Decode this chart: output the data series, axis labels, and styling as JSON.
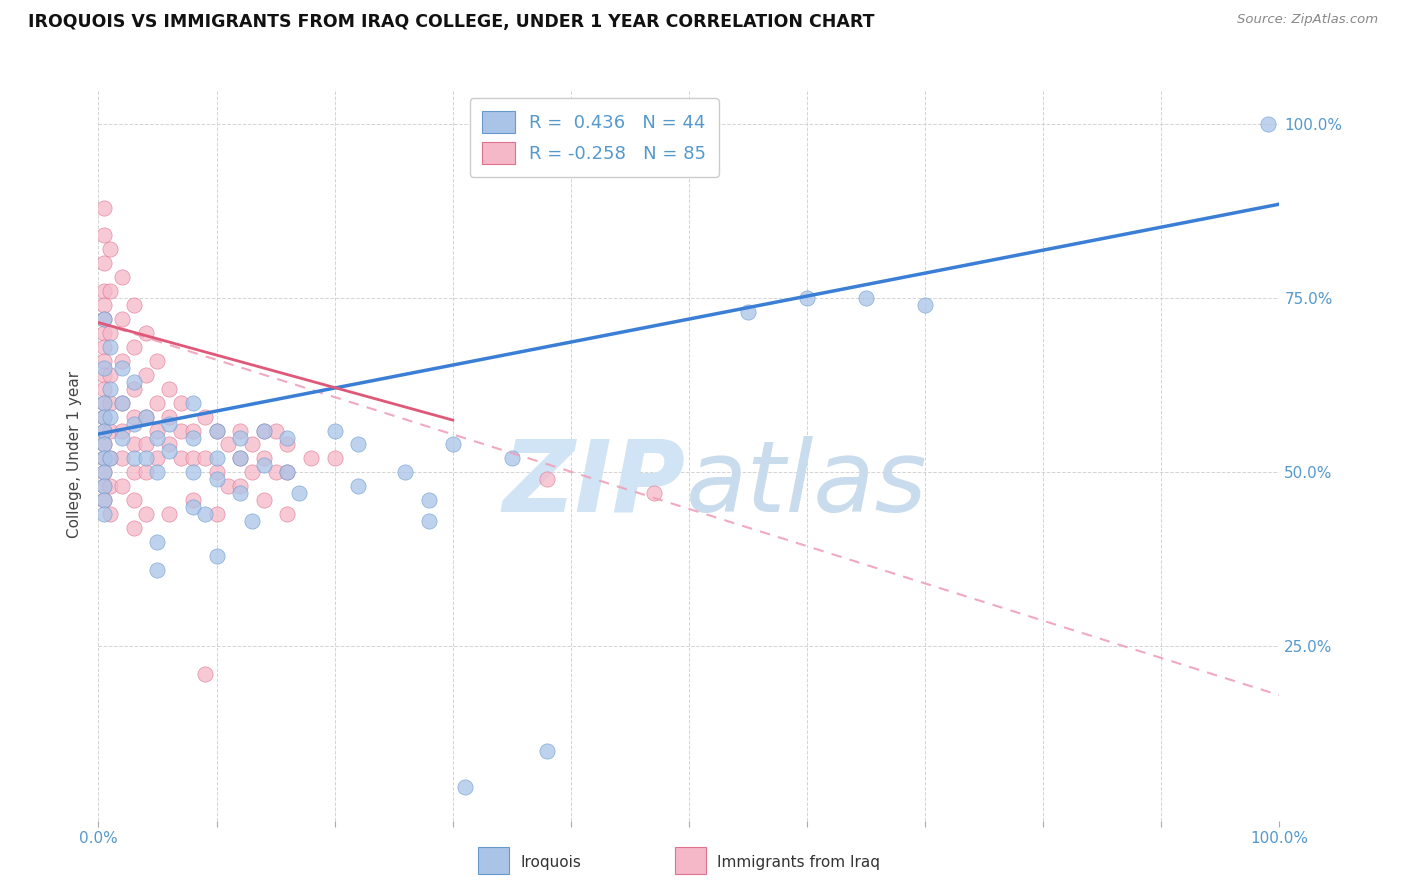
{
  "title": "IROQUOIS VS IMMIGRANTS FROM IRAQ COLLEGE, UNDER 1 YEAR CORRELATION CHART",
  "source": "Source: ZipAtlas.com",
  "ylabel": "College, Under 1 year",
  "iroquois_label": "Iroquois",
  "iraq_label": "Immigrants from Iraq",
  "blue_scatter_color": "#aac4e8",
  "blue_edge_color": "#6699cc",
  "pink_scatter_color": "#f5b8c8",
  "pink_edge_color": "#e07090",
  "blue_line_color": "#3a7fd5",
  "pink_line_solid_color": "#e05878",
  "pink_line_dash_color": "#f0a0b8",
  "grid_color": "#d0d0d0",
  "title_color": "#111111",
  "source_color": "#888888",
  "axis_label_color": "#5599cc",
  "watermark_zip_color": "#d0e4f5",
  "watermark_atlas_color": "#c8dced",
  "xlim": [
    0.0,
    1.0
  ],
  "ylim": [
    0.0,
    1.05
  ],
  "ytick_positions": [
    0.25,
    0.5,
    0.75,
    1.0
  ],
  "ytick_labels_right": [
    "25.0%",
    "50.0%",
    "75.0%",
    "100.0%"
  ],
  "xtick_positions": [
    0.0,
    0.5,
    1.0
  ],
  "iroquois_line_x0": 0.0,
  "iroquois_line_y0": 0.555,
  "iroquois_line_x1": 1.0,
  "iroquois_line_y1": 0.885,
  "iraq_solid_line_x0": 0.0,
  "iraq_solid_line_y0": 0.715,
  "iraq_solid_line_x1": 0.3,
  "iraq_solid_line_y1": 0.575,
  "iraq_dash_line_x0": 0.0,
  "iraq_dash_line_y0": 0.715,
  "iraq_dash_line_x1": 1.0,
  "iraq_dash_line_y1": 0.18,
  "iroquois_scatter": [
    [
      0.005,
      0.72
    ],
    [
      0.005,
      0.65
    ],
    [
      0.005,
      0.6
    ],
    [
      0.005,
      0.58
    ],
    [
      0.005,
      0.56
    ],
    [
      0.005,
      0.54
    ],
    [
      0.005,
      0.52
    ],
    [
      0.005,
      0.5
    ],
    [
      0.005,
      0.48
    ],
    [
      0.005,
      0.46
    ],
    [
      0.005,
      0.44
    ],
    [
      0.01,
      0.68
    ],
    [
      0.01,
      0.62
    ],
    [
      0.01,
      0.58
    ],
    [
      0.01,
      0.52
    ],
    [
      0.02,
      0.65
    ],
    [
      0.02,
      0.6
    ],
    [
      0.02,
      0.55
    ],
    [
      0.03,
      0.63
    ],
    [
      0.03,
      0.57
    ],
    [
      0.03,
      0.52
    ],
    [
      0.04,
      0.58
    ],
    [
      0.04,
      0.52
    ],
    [
      0.05,
      0.55
    ],
    [
      0.05,
      0.5
    ],
    [
      0.06,
      0.57
    ],
    [
      0.06,
      0.53
    ],
    [
      0.08,
      0.6
    ],
    [
      0.08,
      0.55
    ],
    [
      0.08,
      0.5
    ],
    [
      0.1,
      0.56
    ],
    [
      0.1,
      0.52
    ],
    [
      0.1,
      0.49
    ],
    [
      0.12,
      0.55
    ],
    [
      0.12,
      0.52
    ],
    [
      0.14,
      0.56
    ],
    [
      0.14,
      0.51
    ],
    [
      0.16,
      0.55
    ],
    [
      0.16,
      0.5
    ],
    [
      0.2,
      0.56
    ],
    [
      0.22,
      0.54
    ],
    [
      0.08,
      0.45
    ],
    [
      0.12,
      0.47
    ],
    [
      0.05,
      0.4
    ],
    [
      0.09,
      0.44
    ],
    [
      0.13,
      0.43
    ],
    [
      0.17,
      0.47
    ],
    [
      0.22,
      0.48
    ],
    [
      0.26,
      0.5
    ],
    [
      0.3,
      0.54
    ],
    [
      0.35,
      0.52
    ],
    [
      0.55,
      0.73
    ],
    [
      0.6,
      0.75
    ],
    [
      0.65,
      0.75
    ],
    [
      0.7,
      0.74
    ],
    [
      0.38,
      0.1
    ],
    [
      0.05,
      0.36
    ],
    [
      0.1,
      0.38
    ],
    [
      0.28,
      0.43
    ],
    [
      0.28,
      0.46
    ],
    [
      0.99,
      1.0
    ],
    [
      0.31,
      0.048
    ]
  ],
  "iraq_scatter": [
    [
      0.005,
      0.88
    ],
    [
      0.005,
      0.84
    ],
    [
      0.005,
      0.8
    ],
    [
      0.005,
      0.76
    ],
    [
      0.005,
      0.74
    ],
    [
      0.005,
      0.72
    ],
    [
      0.005,
      0.7
    ],
    [
      0.005,
      0.68
    ],
    [
      0.005,
      0.66
    ],
    [
      0.005,
      0.64
    ],
    [
      0.005,
      0.62
    ],
    [
      0.005,
      0.6
    ],
    [
      0.005,
      0.58
    ],
    [
      0.005,
      0.56
    ],
    [
      0.005,
      0.54
    ],
    [
      0.005,
      0.52
    ],
    [
      0.005,
      0.5
    ],
    [
      0.005,
      0.48
    ],
    [
      0.005,
      0.46
    ],
    [
      0.01,
      0.82
    ],
    [
      0.01,
      0.76
    ],
    [
      0.01,
      0.7
    ],
    [
      0.01,
      0.64
    ],
    [
      0.01,
      0.6
    ],
    [
      0.01,
      0.56
    ],
    [
      0.01,
      0.52
    ],
    [
      0.01,
      0.48
    ],
    [
      0.01,
      0.44
    ],
    [
      0.02,
      0.78
    ],
    [
      0.02,
      0.72
    ],
    [
      0.02,
      0.66
    ],
    [
      0.02,
      0.6
    ],
    [
      0.02,
      0.56
    ],
    [
      0.02,
      0.52
    ],
    [
      0.02,
      0.48
    ],
    [
      0.03,
      0.74
    ],
    [
      0.03,
      0.68
    ],
    [
      0.03,
      0.62
    ],
    [
      0.03,
      0.58
    ],
    [
      0.03,
      0.54
    ],
    [
      0.03,
      0.5
    ],
    [
      0.03,
      0.46
    ],
    [
      0.04,
      0.7
    ],
    [
      0.04,
      0.64
    ],
    [
      0.04,
      0.58
    ],
    [
      0.04,
      0.54
    ],
    [
      0.04,
      0.5
    ],
    [
      0.05,
      0.66
    ],
    [
      0.05,
      0.6
    ],
    [
      0.05,
      0.56
    ],
    [
      0.05,
      0.52
    ],
    [
      0.06,
      0.62
    ],
    [
      0.06,
      0.58
    ],
    [
      0.06,
      0.54
    ],
    [
      0.07,
      0.6
    ],
    [
      0.07,
      0.56
    ],
    [
      0.07,
      0.52
    ],
    [
      0.08,
      0.56
    ],
    [
      0.08,
      0.52
    ],
    [
      0.09,
      0.58
    ],
    [
      0.09,
      0.52
    ],
    [
      0.1,
      0.56
    ],
    [
      0.1,
      0.5
    ],
    [
      0.11,
      0.54
    ],
    [
      0.11,
      0.48
    ],
    [
      0.12,
      0.56
    ],
    [
      0.12,
      0.52
    ],
    [
      0.13,
      0.54
    ],
    [
      0.13,
      0.5
    ],
    [
      0.14,
      0.56
    ],
    [
      0.14,
      0.52
    ],
    [
      0.15,
      0.56
    ],
    [
      0.15,
      0.5
    ],
    [
      0.16,
      0.54
    ],
    [
      0.16,
      0.5
    ],
    [
      0.18,
      0.52
    ],
    [
      0.2,
      0.52
    ],
    [
      0.03,
      0.42
    ],
    [
      0.04,
      0.44
    ],
    [
      0.06,
      0.44
    ],
    [
      0.08,
      0.46
    ],
    [
      0.1,
      0.44
    ],
    [
      0.12,
      0.48
    ],
    [
      0.14,
      0.46
    ],
    [
      0.16,
      0.44
    ],
    [
      0.09,
      0.21
    ],
    [
      0.38,
      0.49
    ],
    [
      0.47,
      0.47
    ]
  ]
}
